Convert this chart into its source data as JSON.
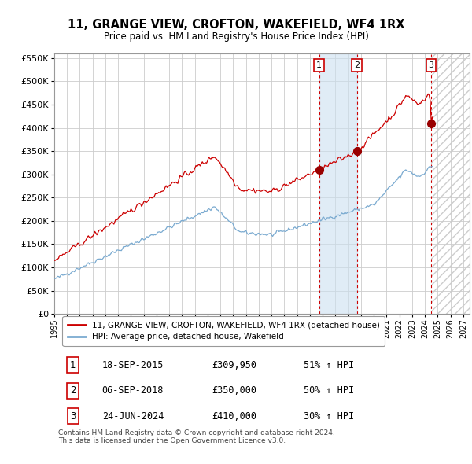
{
  "title": "11, GRANGE VIEW, CROFTON, WAKEFIELD, WF4 1RX",
  "subtitle": "Price paid vs. HM Land Registry's House Price Index (HPI)",
  "xlim_start": 1995.0,
  "xlim_end": 2027.5,
  "ylim": [
    0,
    560000
  ],
  "yticks": [
    0,
    50000,
    100000,
    150000,
    200000,
    250000,
    300000,
    350000,
    400000,
    450000,
    500000,
    550000
  ],
  "xticks": [
    1995,
    1996,
    1997,
    1998,
    1999,
    2000,
    2001,
    2002,
    2003,
    2004,
    2005,
    2006,
    2007,
    2008,
    2009,
    2010,
    2011,
    2012,
    2013,
    2014,
    2015,
    2016,
    2017,
    2018,
    2019,
    2020,
    2021,
    2022,
    2023,
    2024,
    2025,
    2026,
    2027
  ],
  "hpi_color": "#7aaad0",
  "price_color": "#cc0000",
  "sale_color": "#990000",
  "transaction_color": "#cc0000",
  "grid_color": "#cccccc",
  "background_color": "#ffffff",
  "shade_color": "#cce0f0",
  "hatch_color": "#cccccc",
  "legend_label_price": "11, GRANGE VIEW, CROFTON, WAKEFIELD, WF4 1RX (detached house)",
  "legend_label_hpi": "HPI: Average price, detached house, Wakefield",
  "transactions": [
    {
      "date": 2015.72,
      "price": 309950,
      "label": "1"
    },
    {
      "date": 2018.68,
      "price": 350000,
      "label": "2"
    },
    {
      "date": 2024.48,
      "price": 410000,
      "label": "3"
    }
  ],
  "table_rows": [
    {
      "num": "1",
      "date": "18-SEP-2015",
      "price": "£309,950",
      "pct": "51% ↑ HPI"
    },
    {
      "num": "2",
      "date": "06-SEP-2018",
      "price": "£350,000",
      "pct": "50% ↑ HPI"
    },
    {
      "num": "3",
      "date": "24-JUN-2024",
      "price": "£410,000",
      "pct": "30% ↑ HPI"
    }
  ],
  "footer": "Contains HM Land Registry data © Crown copyright and database right 2024.\nThis data is licensed under the Open Government Licence v3.0."
}
